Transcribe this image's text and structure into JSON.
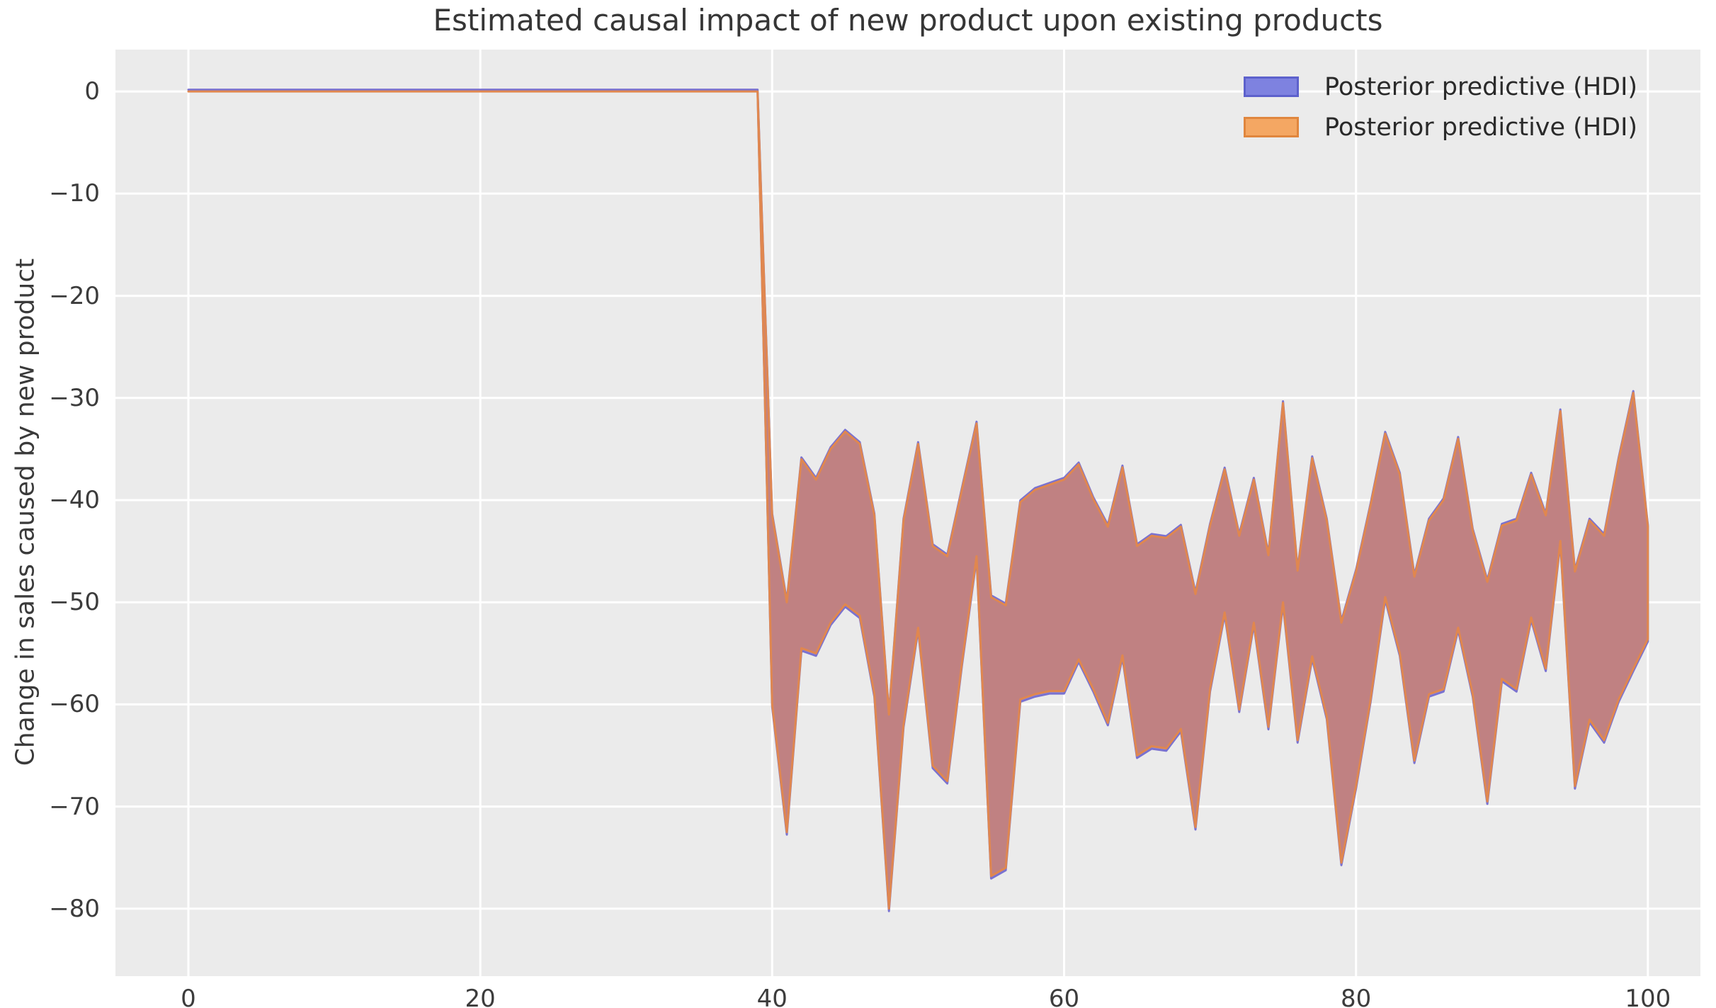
{
  "chart_data": {
    "type": "area",
    "title": "Estimated causal impact of new product upon existing products",
    "xlabel": "",
    "ylabel": "Change in sales caused by new product",
    "xlim": [
      -5.0,
      103.6
    ],
    "ylim": [
      -86.6,
      4.1
    ],
    "grid": true,
    "legend_position": "upper right",
    "xticks": [
      0,
      20,
      40,
      60,
      80,
      100
    ],
    "xtick_labels": [
      "0",
      "20",
      "40",
      "60",
      "80",
      "100"
    ],
    "yticks": [
      0,
      -10,
      -20,
      -30,
      -40,
      -50,
      -60,
      -70,
      -80
    ],
    "ytick_labels": [
      "0",
      "−10",
      "−20",
      "−30",
      "−40",
      "−50",
      "−60",
      "−70",
      "−80"
    ],
    "pre_period": {
      "x_start": 0,
      "x_end": 39,
      "value": 0
    },
    "band_x": [
      40,
      41,
      42,
      43,
      44,
      45,
      46,
      47,
      48,
      49,
      50,
      51,
      52,
      53,
      54,
      55,
      56,
      57,
      58,
      59,
      60,
      61,
      62,
      63,
      64,
      65,
      66,
      67,
      68,
      69,
      70,
      71,
      72,
      73,
      74,
      75,
      76,
      77,
      78,
      79,
      80,
      81,
      82,
      83,
      84,
      85,
      86,
      87,
      88,
      89,
      90,
      91,
      92,
      93,
      94,
      95,
      96,
      97,
      98,
      99,
      100
    ],
    "series": [
      {
        "name": "Posterior predictive (HDI)",
        "role": "hdi-band",
        "fill": "#9e95da",
        "edge": "#7a72d0",
        "upper": "same as band_upper",
        "lower": "same as band_lower"
      },
      {
        "name": "Posterior predictive (HDI)",
        "role": "hdi-band",
        "fill": "#f4a763",
        "edge": "#e0874f",
        "upper": "same as band_upper",
        "lower": "same as band_lower"
      }
    ],
    "band_upper": [
      -41.5,
      -50,
      -36,
      -38,
      -35,
      -33.3,
      -34.5,
      -41.5,
      -61,
      -42,
      -34.5,
      -44.5,
      -45.5,
      -39,
      -32.5,
      -49.5,
      -50.3,
      -40.2,
      -39,
      -38.5,
      -38,
      -36.5,
      -39.9,
      -42.6,
      -36.8,
      -44.5,
      -43.5,
      -43.7,
      -42.6,
      -49.2,
      -42.5,
      -37,
      -43.5,
      -38,
      -45.4,
      -30.5,
      -46.9,
      -35.9,
      -42,
      -52,
      -47,
      -40.5,
      -33.5,
      -37.5,
      -47.5,
      -42,
      -40,
      -34,
      -43,
      -48,
      -42.5,
      -42,
      -37.5,
      -41.5,
      -31.3,
      -47,
      -42,
      -43.5,
      -36,
      -29.5,
      -42.6
    ],
    "band_lower": [
      -60,
      -72.5,
      -54.5,
      -55,
      -52,
      -50.2,
      -51.3,
      -59,
      -80,
      -62,
      -52.5,
      -66,
      -67.5,
      -56,
      -45.5,
      -76.8,
      -76,
      -59.5,
      -59,
      -58.7,
      -58.7,
      -55.6,
      -58.5,
      -61.8,
      -55.2,
      -65,
      -64.1,
      -64.3,
      -62.4,
      -72,
      -58.5,
      -51,
      -60.5,
      -52,
      -62.2,
      -50,
      -63.5,
      -55.3,
      -61.2,
      -75.5,
      -68,
      -59.5,
      -49.5,
      -55,
      -65.5,
      -59,
      -58.5,
      -52.5,
      -59,
      -69.5,
      -57.5,
      -58.5,
      -51.5,
      -56.5,
      -44,
      -68,
      -61.5,
      -63.5,
      -59.5,
      -56.5,
      -53.6
    ],
    "overlap_fill": "#c08182"
  },
  "colors": {
    "page_bg": "#ffffff",
    "plot_bg": "#ebebeb",
    "gridline": "#ffffff",
    "title_text": "#363636",
    "tick_text": "#3c3c3c",
    "band_overlap_fill": "#c08182",
    "band_orange_edge": "#e0874f",
    "band_blue_edge": "#7a72d0",
    "zero_line": "#ca7f78"
  },
  "legend": {
    "items": [
      {
        "label": "Posterior predictive (HDI)",
        "swatch_fill": "#7e82e0",
        "swatch_border": "#5d61cc"
      },
      {
        "label": "Posterior predictive (HDI)",
        "swatch_fill": "#f4a763",
        "swatch_border": "#e0863e"
      }
    ]
  }
}
